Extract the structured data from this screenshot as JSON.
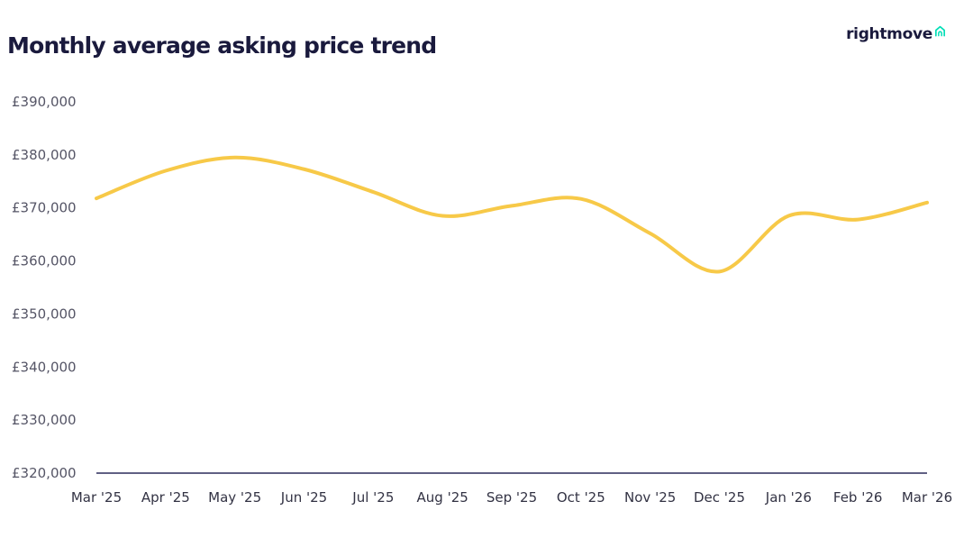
{
  "brand": {
    "logo_text": "rightmove",
    "logo_icon": "house-outline-icon",
    "accent_color": "#00deb6"
  },
  "chart_data": {
    "type": "line",
    "title": "Monthly average asking price trend",
    "xlabel": "",
    "ylabel": "",
    "x": [
      "Mar '25",
      "Apr '25",
      "May '25",
      "Jun '25",
      "Jul '25",
      "Aug '25",
      "Sep '25",
      "Oct '25",
      "Nov '25",
      "Dec '25",
      "Jan '26",
      "Feb '26",
      "Mar '26"
    ],
    "y_ticks": [
      "£320,000",
      "£330,000",
      "£340,000",
      "£350,000",
      "£360,000",
      "£370,000",
      "£380,000",
      "£390,000"
    ],
    "ylim": [
      320000,
      390000
    ],
    "grid": false,
    "series": [
      {
        "name": "Monthly average asking price",
        "color": "#f7c948",
        "values": [
          371800,
          377000,
          379500,
          377300,
          373000,
          368500,
          370400,
          371700,
          365200,
          358000,
          368500,
          367800,
          371000
        ]
      }
    ]
  }
}
